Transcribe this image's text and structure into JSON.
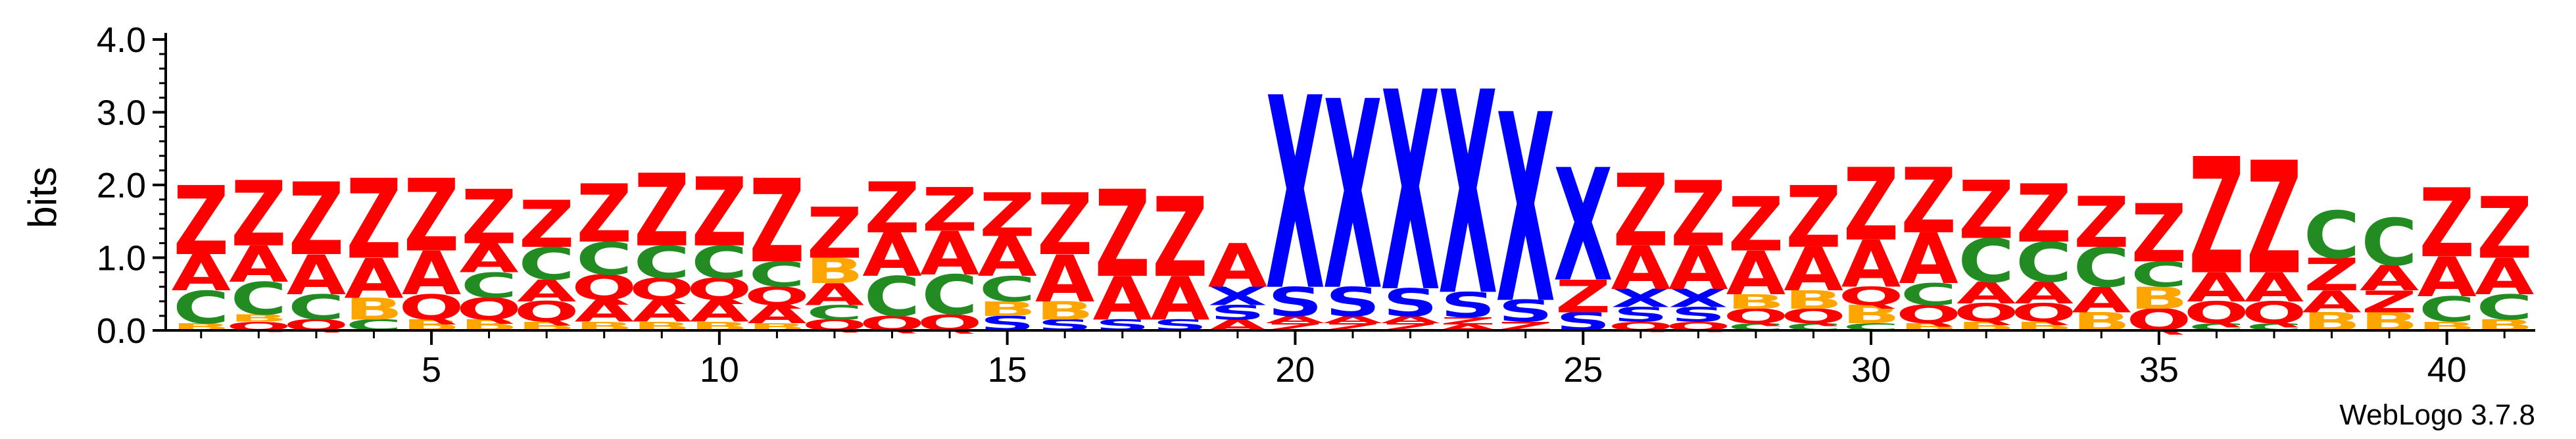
{
  "chart_data": {
    "type": "sequence-logo",
    "ylabel": "bits",
    "ylim": [
      0,
      4
    ],
    "y_ticks": [
      "0.0",
      "1.0",
      "2.0",
      "3.0",
      "4.0"
    ],
    "x_ticks": [
      {
        "pos": 5,
        "label": "5"
      },
      {
        "pos": 10,
        "label": "10"
      },
      {
        "pos": 15,
        "label": "15"
      },
      {
        "pos": 20,
        "label": "20"
      },
      {
        "pos": 25,
        "label": "25"
      },
      {
        "pos": 30,
        "label": "30"
      },
      {
        "pos": 35,
        "label": "35"
      },
      {
        "pos": 40,
        "label": "40"
      }
    ],
    "footer": "WebLogo 3.7.8",
    "colors": {
      "Z": "#ff0000",
      "A": "#ff0000",
      "Q": "#ff0000",
      "C": "#228b22",
      "B": "#ffa500",
      "X": "#0000ff",
      "S": "#0000ff"
    },
    "positions": [
      {
        "pos": 1,
        "letters": [
          {
            "l": "B",
            "h": 0.1
          },
          {
            "l": "C",
            "h": 0.45
          },
          {
            "l": "A",
            "h": 0.5
          },
          {
            "l": "Z",
            "h": 0.95
          }
        ]
      },
      {
        "pos": 2,
        "letters": [
          {
            "l": "Q",
            "h": 0.12
          },
          {
            "l": "B",
            "h": 0.1
          },
          {
            "l": "C",
            "h": 0.45
          },
          {
            "l": "A",
            "h": 0.5
          },
          {
            "l": "Z",
            "h": 0.9
          }
        ]
      },
      {
        "pos": 3,
        "letters": [
          {
            "l": "Q",
            "h": 0.15
          },
          {
            "l": "C",
            "h": 0.35
          },
          {
            "l": "A",
            "h": 0.55
          },
          {
            "l": "Z",
            "h": 1.0
          }
        ]
      },
      {
        "pos": 4,
        "letters": [
          {
            "l": "C",
            "h": 0.15
          },
          {
            "l": "B",
            "h": 0.3
          },
          {
            "l": "A",
            "h": 0.55
          },
          {
            "l": "Z",
            "h": 1.1
          }
        ]
      },
      {
        "pos": 5,
        "letters": [
          {
            "l": "B",
            "h": 0.15
          },
          {
            "l": "Q",
            "h": 0.35
          },
          {
            "l": "A",
            "h": 0.6
          },
          {
            "l": "Z",
            "h": 1.0
          }
        ]
      },
      {
        "pos": 6,
        "letters": [
          {
            "l": "B",
            "h": 0.15
          },
          {
            "l": "Q",
            "h": 0.3
          },
          {
            "l": "C",
            "h": 0.35
          },
          {
            "l": "A",
            "h": 0.4
          },
          {
            "l": "Z",
            "h": 0.75
          }
        ]
      },
      {
        "pos": 7,
        "letters": [
          {
            "l": "B",
            "h": 0.12
          },
          {
            "l": "Q",
            "h": 0.28
          },
          {
            "l": "A",
            "h": 0.3
          },
          {
            "l": "C",
            "h": 0.45
          },
          {
            "l": "Z",
            "h": 0.65
          }
        ]
      },
      {
        "pos": 8,
        "letters": [
          {
            "l": "B",
            "h": 0.12
          },
          {
            "l": "A",
            "h": 0.3
          },
          {
            "l": "Q",
            "h": 0.35
          },
          {
            "l": "C",
            "h": 0.45
          },
          {
            "l": "Z",
            "h": 0.8
          }
        ]
      },
      {
        "pos": 9,
        "letters": [
          {
            "l": "B",
            "h": 0.12
          },
          {
            "l": "A",
            "h": 0.3
          },
          {
            "l": "Q",
            "h": 0.3
          },
          {
            "l": "C",
            "h": 0.45
          },
          {
            "l": "Z",
            "h": 1.0
          }
        ]
      },
      {
        "pos": 10,
        "letters": [
          {
            "l": "B",
            "h": 0.12
          },
          {
            "l": "A",
            "h": 0.3
          },
          {
            "l": "Q",
            "h": 0.3
          },
          {
            "l": "C",
            "h": 0.45
          },
          {
            "l": "Z",
            "h": 0.95
          }
        ]
      },
      {
        "pos": 11,
        "letters": [
          {
            "l": "B",
            "h": 0.1
          },
          {
            "l": "A",
            "h": 0.25
          },
          {
            "l": "Q",
            "h": 0.25
          },
          {
            "l": "C",
            "h": 0.35
          },
          {
            "l": "Z",
            "h": 1.15
          }
        ]
      },
      {
        "pos": 12,
        "letters": [
          {
            "l": "Q",
            "h": 0.15
          },
          {
            "l": "C",
            "h": 0.2
          },
          {
            "l": "A",
            "h": 0.3
          },
          {
            "l": "B",
            "h": 0.35
          },
          {
            "l": "Z",
            "h": 0.7
          }
        ]
      },
      {
        "pos": 13,
        "letters": [
          {
            "l": "Q",
            "h": 0.2
          },
          {
            "l": "C",
            "h": 0.55
          },
          {
            "l": "A",
            "h": 0.6
          },
          {
            "l": "Z",
            "h": 0.7
          }
        ]
      },
      {
        "pos": 14,
        "letters": [
          {
            "l": "Q",
            "h": 0.22
          },
          {
            "l": "C",
            "h": 0.55
          },
          {
            "l": "A",
            "h": 0.6
          },
          {
            "l": "Z",
            "h": 0.6
          }
        ]
      },
      {
        "pos": 15,
        "letters": [
          {
            "l": "S",
            "h": 0.2
          },
          {
            "l": "B",
            "h": 0.2
          },
          {
            "l": "C",
            "h": 0.35
          },
          {
            "l": "A",
            "h": 0.55
          },
          {
            "l": "Z",
            "h": 0.6
          }
        ]
      },
      {
        "pos": 16,
        "letters": [
          {
            "l": "S",
            "h": 0.15
          },
          {
            "l": "B",
            "h": 0.25
          },
          {
            "l": "A",
            "h": 0.65
          },
          {
            "l": "Z",
            "h": 0.85
          }
        ]
      },
      {
        "pos": 17,
        "letters": [
          {
            "l": "S",
            "h": 0.15
          },
          {
            "l": "A",
            "h": 0.6
          },
          {
            "l": "Z",
            "h": 1.2
          }
        ]
      },
      {
        "pos": 18,
        "letters": [
          {
            "l": "S",
            "h": 0.15
          },
          {
            "l": "A",
            "h": 0.6
          },
          {
            "l": "Z",
            "h": 1.1
          }
        ]
      },
      {
        "pos": 19,
        "letters": [
          {
            "l": "A",
            "h": 0.15
          },
          {
            "l": "S",
            "h": 0.2
          },
          {
            "l": "X",
            "h": 0.25
          },
          {
            "l": "A",
            "h": 0.6
          },
          {
            "l": "Z",
            "h": 0.0
          }
        ]
      },
      {
        "pos": 20,
        "letters": [
          {
            "l": "Z",
            "h": 0.1
          },
          {
            "l": "A",
            "h": 0.1
          },
          {
            "l": "S",
            "h": 0.4
          },
          {
            "l": "X",
            "h": 2.65
          }
        ]
      },
      {
        "pos": 21,
        "letters": [
          {
            "l": "Z",
            "h": 0.1
          },
          {
            "l": "A",
            "h": 0.1
          },
          {
            "l": "S",
            "h": 0.4
          },
          {
            "l": "X",
            "h": 2.6
          }
        ]
      },
      {
        "pos": 22,
        "letters": [
          {
            "l": "Z",
            "h": 0.1
          },
          {
            "l": "A",
            "h": 0.1
          },
          {
            "l": "S",
            "h": 0.38
          },
          {
            "l": "X",
            "h": 2.75
          }
        ]
      },
      {
        "pos": 23,
        "letters": [
          {
            "l": "A",
            "h": 0.08
          },
          {
            "l": "Z",
            "h": 0.1
          },
          {
            "l": "S",
            "h": 0.35
          },
          {
            "l": "X",
            "h": 2.8
          }
        ]
      },
      {
        "pos": 24,
        "letters": [
          {
            "l": "Z",
            "h": 0.12
          },
          {
            "l": "S",
            "h": 0.3
          },
          {
            "l": "X",
            "h": 2.6
          }
        ]
      },
      {
        "pos": 25,
        "letters": [
          {
            "l": "S",
            "h": 0.25
          },
          {
            "l": "X",
            "h": 0.0
          },
          {
            "l": "Z",
            "h": 0.45
          },
          {
            "l": "X",
            "h": 1.55
          }
        ]
      },
      {
        "pos": 26,
        "letters": [
          {
            "l": "Q",
            "h": 0.12
          },
          {
            "l": "S",
            "h": 0.2
          },
          {
            "l": "X",
            "h": 0.25
          },
          {
            "l": "A",
            "h": 0.6
          },
          {
            "l": "Z",
            "h": 1.0
          }
        ]
      },
      {
        "pos": 27,
        "letters": [
          {
            "l": "Q",
            "h": 0.12
          },
          {
            "l": "S",
            "h": 0.2
          },
          {
            "l": "X",
            "h": 0.25
          },
          {
            "l": "A",
            "h": 0.6
          },
          {
            "l": "Z",
            "h": 0.9
          }
        ]
      },
      {
        "pos": 28,
        "letters": [
          {
            "l": "C",
            "h": 0.1
          },
          {
            "l": "Q",
            "h": 0.2
          },
          {
            "l": "B",
            "h": 0.2
          },
          {
            "l": "A",
            "h": 0.6
          },
          {
            "l": "Z",
            "h": 0.75
          }
        ]
      },
      {
        "pos": 29,
        "letters": [
          {
            "l": "C",
            "h": 0.1
          },
          {
            "l": "Q",
            "h": 0.2
          },
          {
            "l": "B",
            "h": 0.25
          },
          {
            "l": "A",
            "h": 0.6
          },
          {
            "l": "Z",
            "h": 0.85
          }
        ]
      },
      {
        "pos": 30,
        "letters": [
          {
            "l": "C",
            "h": 0.1
          },
          {
            "l": "B",
            "h": 0.25
          },
          {
            "l": "Q",
            "h": 0.25
          },
          {
            "l": "A",
            "h": 0.65
          },
          {
            "l": "Z",
            "h": 1.0
          }
        ]
      },
      {
        "pos": 31,
        "letters": [
          {
            "l": "B",
            "h": 0.1
          },
          {
            "l": "Q",
            "h": 0.25
          },
          {
            "l": "C",
            "h": 0.3
          },
          {
            "l": "A",
            "h": 0.7
          },
          {
            "l": "Z",
            "h": 0.9
          }
        ]
      },
      {
        "pos": 32,
        "letters": [
          {
            "l": "B",
            "h": 0.12
          },
          {
            "l": "Q",
            "h": 0.25
          },
          {
            "l": "A",
            "h": 0.3
          },
          {
            "l": "C",
            "h": 0.6
          },
          {
            "l": "Z",
            "h": 0.8
          }
        ]
      },
      {
        "pos": 33,
        "letters": [
          {
            "l": "B",
            "h": 0.12
          },
          {
            "l": "Q",
            "h": 0.25
          },
          {
            "l": "A",
            "h": 0.3
          },
          {
            "l": "C",
            "h": 0.55
          },
          {
            "l": "Z",
            "h": 0.8
          }
        ]
      },
      {
        "pos": 34,
        "letters": [
          {
            "l": "B",
            "h": 0.25
          },
          {
            "l": "A",
            "h": 0.35
          },
          {
            "l": "C",
            "h": 0.55
          },
          {
            "l": "Z",
            "h": 0.7
          }
        ]
      },
      {
        "pos": 35,
        "letters": [
          {
            "l": "Q",
            "h": 0.3
          },
          {
            "l": "B",
            "h": 0.3
          },
          {
            "l": "C",
            "h": 0.35
          },
          {
            "l": "Z",
            "h": 0.8
          }
        ]
      },
      {
        "pos": 36,
        "letters": [
          {
            "l": "C",
            "h": 0.1
          },
          {
            "l": "Q",
            "h": 0.3
          },
          {
            "l": "A",
            "h": 0.4
          },
          {
            "l": "Z",
            "h": 1.6
          }
        ]
      },
      {
        "pos": 37,
        "letters": [
          {
            "l": "C",
            "h": 0.1
          },
          {
            "l": "Q",
            "h": 0.3
          },
          {
            "l": "A",
            "h": 0.4
          },
          {
            "l": "Z",
            "h": 1.55
          }
        ]
      },
      {
        "pos": 38,
        "letters": [
          {
            "l": "B",
            "h": 0.25
          },
          {
            "l": "A",
            "h": 0.3
          },
          {
            "l": "Z",
            "h": 0.45
          },
          {
            "l": "C",
            "h": 0.65
          }
        ]
      },
      {
        "pos": 39,
        "letters": [
          {
            "l": "B",
            "h": 0.25
          },
          {
            "l": "Z",
            "h": 0.3
          },
          {
            "l": "A",
            "h": 0.35
          },
          {
            "l": "C",
            "h": 0.65
          }
        ]
      },
      {
        "pos": 40,
        "letters": [
          {
            "l": "B",
            "h": 0.12
          },
          {
            "l": "C",
            "h": 0.35
          },
          {
            "l": "A",
            "h": 0.55
          },
          {
            "l": "Z",
            "h": 0.95
          }
        ]
      },
      {
        "pos": 41,
        "letters": [
          {
            "l": "B",
            "h": 0.15
          },
          {
            "l": "C",
            "h": 0.35
          },
          {
            "l": "A",
            "h": 0.5
          },
          {
            "l": "Z",
            "h": 0.85
          }
        ]
      }
    ]
  }
}
